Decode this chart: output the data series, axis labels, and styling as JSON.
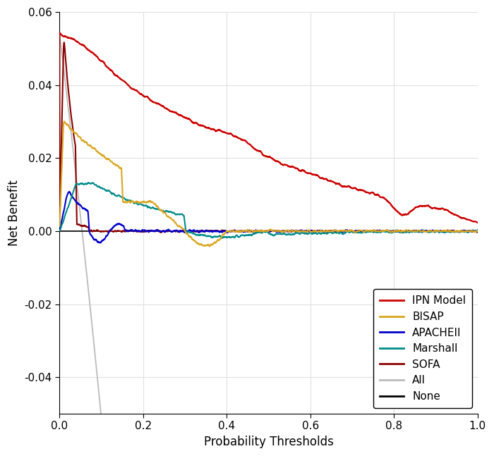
{
  "title": "",
  "xlabel": "Probability Thresholds",
  "ylabel": "Net Benefit",
  "xlim": [
    0.0,
    1.0
  ],
  "ylim": [
    -0.05,
    0.06
  ],
  "yticks": [
    -0.04,
    -0.02,
    0.0,
    0.02,
    0.04,
    0.06
  ],
  "xticks": [
    0.0,
    0.2,
    0.4,
    0.6,
    0.8,
    1.0
  ],
  "colors": {
    "IPN Model": "#CC0000",
    "BISAP": "#DAA520",
    "APACHEII": "#0000CC",
    "Marshall": "#008B8B",
    "SOFA": "#8B0000",
    "All": "#BBBBBB",
    "None": "#000000"
  },
  "background_color": "#FFFFFF",
  "grid_color": "#E0E0E0",
  "prevalence": 0.054
}
